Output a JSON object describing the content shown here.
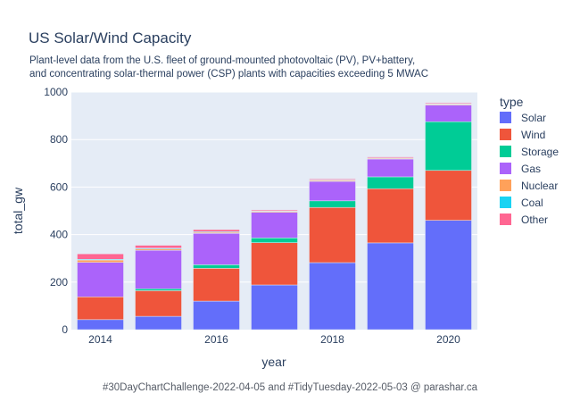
{
  "chart_data": {
    "type": "bar",
    "stacked": true,
    "title": "US Solar/Wind Capacity",
    "subtitle_lines": [
      "Plant-level data from the U.S. fleet of ground-mounted photovoltaic (PV), PV+battery,",
      "and concentrating solar-thermal power (CSP) plants with capacities exceeding 5 MWAC"
    ],
    "xlabel": "year",
    "ylabel": "total_gw",
    "x": [
      2014,
      2015,
      2016,
      2017,
      2018,
      2019,
      2020
    ],
    "xticks": [
      2014,
      2016,
      2018,
      2020
    ],
    "yticks": [
      0,
      200,
      400,
      600,
      800,
      1000
    ],
    "ylim": [
      0,
      1000
    ],
    "grid": true,
    "legend_title": "type",
    "legend_position": "right",
    "series": [
      {
        "name": "Solar",
        "color": "#636efa",
        "values": [
          42,
          56,
          120,
          188,
          282,
          365,
          460
        ]
      },
      {
        "name": "Wind",
        "color": "#ef553b",
        "values": [
          96,
          108,
          138,
          178,
          232,
          228,
          210
        ]
      },
      {
        "name": "Storage",
        "color": "#00cc96",
        "values": [
          0,
          8,
          15,
          20,
          28,
          50,
          205
        ]
      },
      {
        "name": "Gas",
        "color": "#ab63fa",
        "values": [
          145,
          162,
          132,
          108,
          82,
          75,
          70
        ]
      },
      {
        "name": "Nuclear",
        "color": "#ffa15a",
        "values": [
          10,
          6,
          4,
          4,
          4,
          3,
          3
        ]
      },
      {
        "name": "Coal",
        "color": "#19d3f3",
        "values": [
          3,
          3,
          3,
          2,
          2,
          2,
          2
        ]
      },
      {
        "name": "Other",
        "color": "#ff6692",
        "values": [
          23,
          12,
          9,
          4,
          4,
          4,
          4
        ]
      }
    ],
    "footer": "#30DayChartChallenge-2022-04-05 and #TidyTuesday-2022-05-03 @ parashar.ca"
  }
}
